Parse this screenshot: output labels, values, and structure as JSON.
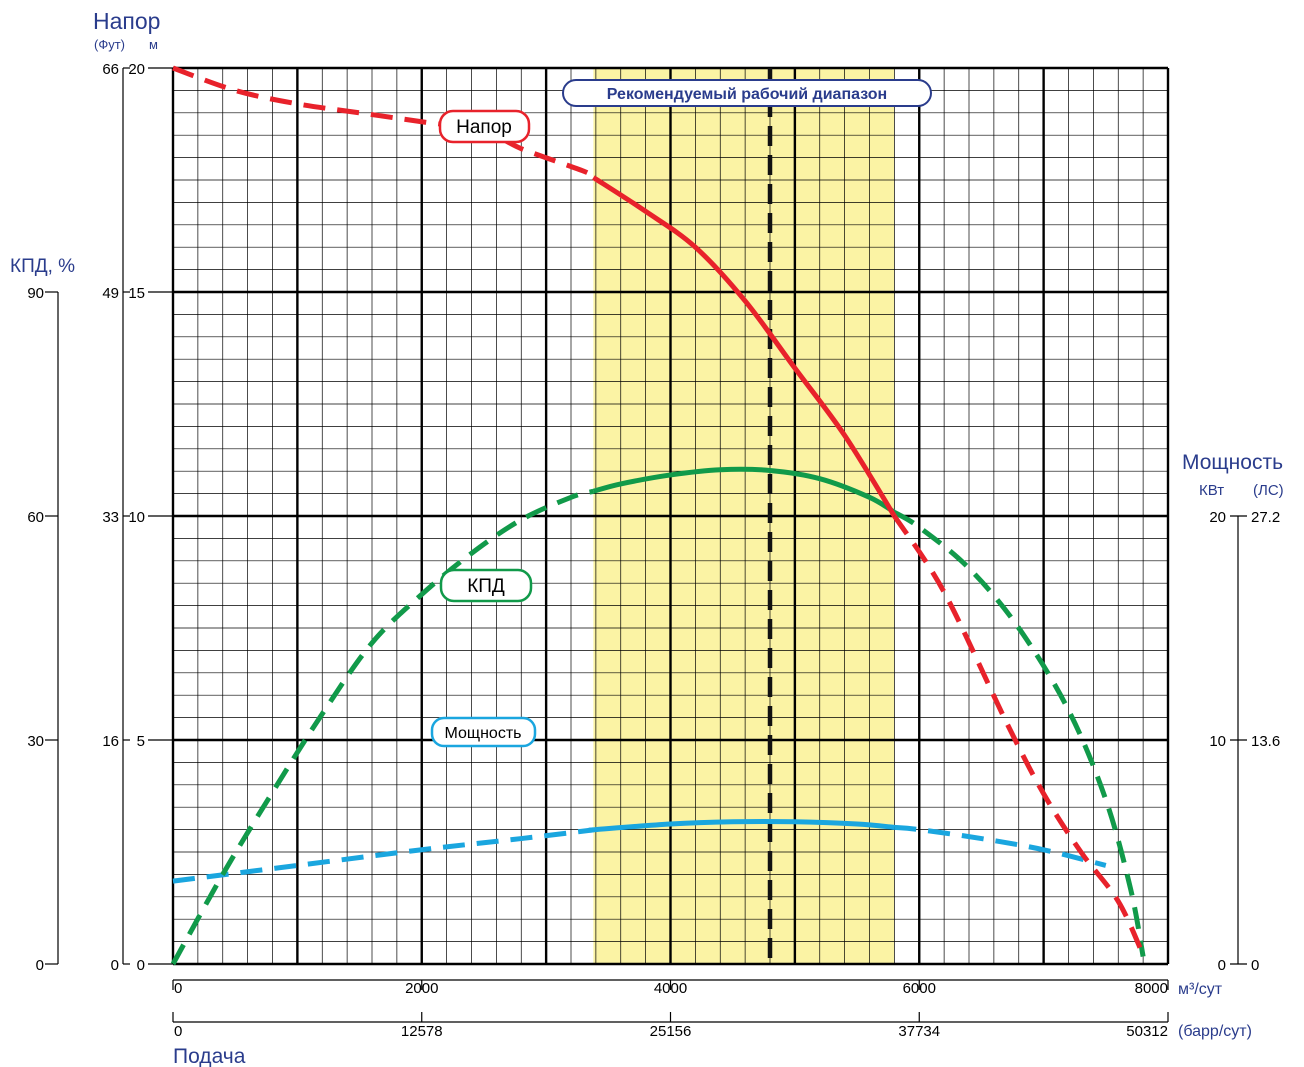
{
  "axes": {
    "head_title": "Напор",
    "head_unit_ft": "(Фут)",
    "head_unit_m": "м",
    "eff_title": "КПД, %",
    "power_title": "Мощность",
    "power_unit_kw": "КВт",
    "power_unit_hp": "(ЛС)",
    "flow_title": "Подача",
    "flow_unit_m3": "м³/сут",
    "flow_unit_bbl": "(барр/сут)"
  },
  "colors": {
    "head": "#e8222b",
    "efficiency": "#119a4a",
    "power": "#1aa6df",
    "band": "#fbf3a4",
    "label_blue": "#2a3c8c"
  },
  "chart_data": {
    "type": "line",
    "title": "",
    "xlabel": "Подача",
    "xlim": [
      0,
      8000
    ],
    "x_ticks": [
      0,
      2000,
      4000,
      6000,
      8000
    ],
    "x_tick_labels": [
      "0",
      "2000",
      "4000",
      "6000",
      "8000"
    ],
    "x2_tick_labels": [
      "0",
      "12578",
      "25156",
      "37734",
      "50312"
    ],
    "ylim_head_m": [
      0,
      20
    ],
    "y_ticks_head_m": [
      0,
      5,
      10,
      15,
      20
    ],
    "y_tick_labels_head_m": [
      "0",
      "5",
      "10",
      "15",
      "20"
    ],
    "y_tick_labels_head_ft": [
      "0",
      "16",
      "33",
      "49",
      "66"
    ],
    "y_tick_labels_eff": [
      "0",
      "30",
      "60",
      "90"
    ],
    "y_tick_labels_power_kw": [
      "0",
      "10",
      "20"
    ],
    "y_tick_labels_power_hp": [
      "0",
      "13.6",
      "27.2"
    ],
    "grid": true,
    "recommended_range": {
      "label": "Рекомендуемый рабочий диапазон",
      "x_min": 3380,
      "x_max": 5800,
      "bep_x": 4800
    },
    "series": [
      {
        "name": "Напор",
        "axis": "head_m",
        "x": [
          0,
          500,
          1000,
          1500,
          2000,
          2500,
          2800,
          3300,
          3800,
          4200,
          4600,
          5000,
          5400,
          5800,
          6200,
          6700,
          7000,
          7300,
          7600,
          7800
        ],
        "y": [
          20.0,
          19.5,
          19.2,
          19.0,
          18.8,
          18.6,
          18.2,
          17.7,
          16.8,
          16.0,
          14.8,
          13.3,
          11.8,
          10.0,
          8.3,
          5.4,
          3.8,
          2.5,
          1.4,
          0.2
        ],
        "solid_from_x": 3380,
        "solid_to_x": 5800
      },
      {
        "name": "КПД",
        "axis": "eff_pct",
        "x": [
          0,
          400,
          800,
          1200,
          1600,
          2000,
          2400,
          2800,
          3200,
          3600,
          4000,
          4400,
          4800,
          5200,
          5600,
          6000,
          6400,
          6800,
          7200,
          7500,
          7700,
          7800
        ],
        "y": [
          0,
          12,
          23,
          33.5,
          43,
          49.5,
          55,
          59.5,
          62.5,
          64.3,
          65.5,
          66.2,
          66.1,
          65.0,
          62.5,
          58.5,
          53.0,
          45.0,
          34.0,
          22.0,
          10.0,
          1.0
        ],
        "solid_from_x": 3380,
        "solid_to_x": 5800
      },
      {
        "name": "Мощность",
        "axis": "power_kw",
        "x": [
          0,
          1000,
          2000,
          2800,
          3400,
          4000,
          4500,
          5000,
          5500,
          6000,
          6500,
          7000,
          7500
        ],
        "y": [
          3.7,
          4.4,
          5.1,
          5.6,
          6.0,
          6.25,
          6.35,
          6.35,
          6.25,
          6.0,
          5.6,
          5.1,
          4.4
        ],
        "solid_from_x": 3380,
        "solid_to_x": 5800
      }
    ],
    "curve_labels": [
      "Напор",
      "КПД",
      "Мощность"
    ]
  }
}
